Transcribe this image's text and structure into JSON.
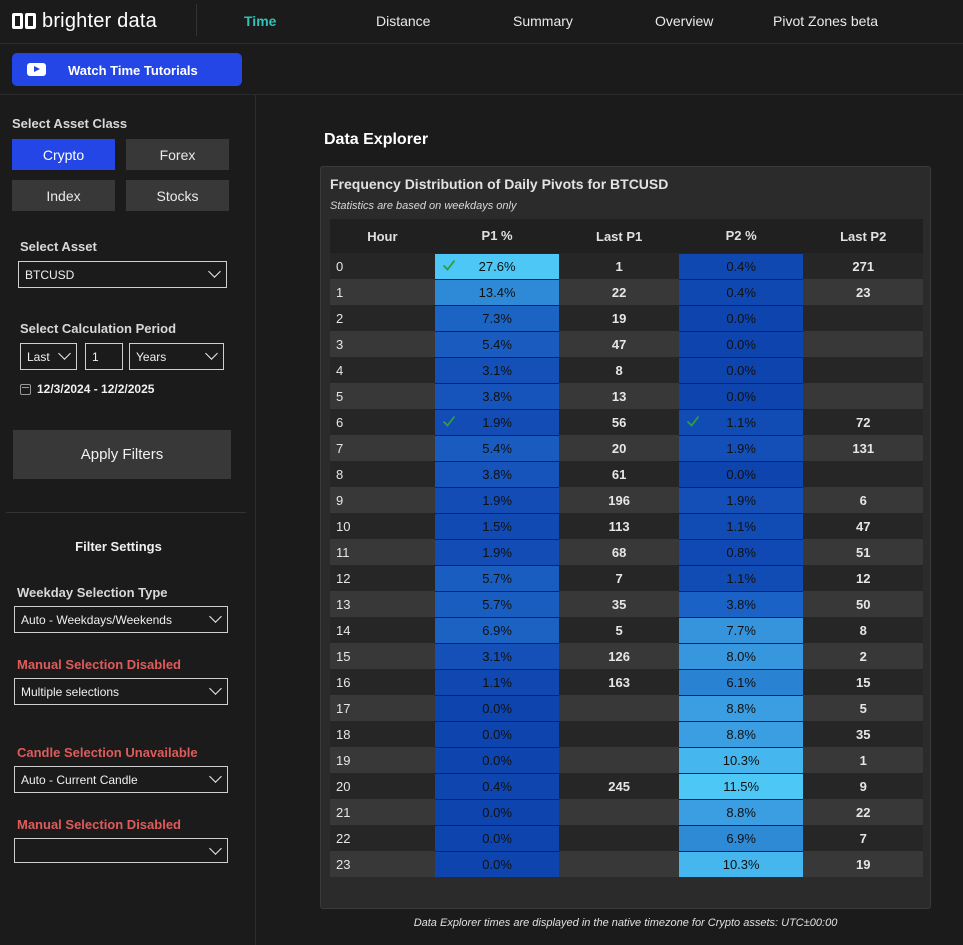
{
  "app": {
    "logo_text": "brighter data"
  },
  "nav": {
    "tabs": [
      "Time",
      "Distance",
      "Summary",
      "Overview",
      "Pivot Zones beta"
    ],
    "active": "Time"
  },
  "tutorial": {
    "label": "Watch Time Tutorials"
  },
  "sidebar": {
    "asset_class_label": "Select Asset Class",
    "asset_classes": [
      "Crypto",
      "Forex",
      "Index",
      "Stocks"
    ],
    "active_asset_class": "Crypto",
    "asset_label": "Select Asset",
    "asset_value": "BTCUSD",
    "period_label": "Select Calculation Period",
    "period_mode": "Last",
    "period_count": "1",
    "period_unit": "Years",
    "date_range": "12/3/2024 - 12/2/2025",
    "apply_label": "Apply Filters",
    "filter_title": "Filter Settings",
    "weekday_label": "Weekday Selection Type",
    "weekday_value": "Auto - Weekdays/Weekends",
    "manual1_label": "Manual Selection Disabled",
    "manual1_value": "Multiple selections",
    "candle_label": "Candle Selection Unavailable",
    "candle_value": "Auto - Current Candle",
    "manual2_label": "Manual Selection Disabled",
    "manual2_value": ""
  },
  "main": {
    "section_title": "Data Explorer",
    "panel_title": "Frequency Distribution of Daily Pivots for BTCUSD",
    "panel_subtitle": "Statistics are based on weekdays only",
    "columns": [
      "Hour",
      "P1 %",
      "Last P1",
      "P2 %",
      "Last P2"
    ],
    "rows": [
      {
        "hour": "0",
        "p1": "27.6%",
        "last_p1": "1",
        "p2": "0.4%",
        "last_p2": "271",
        "p1_color": "#4cc7f6",
        "p2_color": "#1048b2",
        "p1_check": true,
        "p2_check": false
      },
      {
        "hour": "1",
        "p1": "13.4%",
        "last_p1": "22",
        "p2": "0.4%",
        "last_p2": "23",
        "p1_color": "#2e8ad6",
        "p2_color": "#1048b2",
        "p1_check": false,
        "p2_check": false
      },
      {
        "hour": "2",
        "p1": "7.3%",
        "last_p1": "19",
        "p2": "0.0%",
        "last_p2": "",
        "p1_color": "#1c64c4",
        "p2_color": "#0e44ae",
        "p1_check": false,
        "p2_check": false
      },
      {
        "hour": "3",
        "p1": "5.4%",
        "last_p1": "47",
        "p2": "0.0%",
        "last_p2": "",
        "p1_color": "#195bbf",
        "p2_color": "#0e44ae",
        "p1_check": false,
        "p2_check": false
      },
      {
        "hour": "4",
        "p1": "3.1%",
        "last_p1": "8",
        "p2": "0.0%",
        "last_p2": "",
        "p1_color": "#1550b8",
        "p2_color": "#0e44ae",
        "p1_check": false,
        "p2_check": false
      },
      {
        "hour": "5",
        "p1": "3.8%",
        "last_p1": "13",
        "p2": "0.0%",
        "last_p2": "",
        "p1_color": "#1653ba",
        "p2_color": "#0e44ae",
        "p1_check": false,
        "p2_check": false
      },
      {
        "hour": "6",
        "p1": "1.9%",
        "last_p1": "56",
        "p2": "1.1%",
        "last_p2": "72",
        "p1_color": "#134cb5",
        "p2_color": "#114bb4",
        "p1_check": true,
        "p2_check": true
      },
      {
        "hour": "7",
        "p1": "5.4%",
        "last_p1": "20",
        "p2": "1.9%",
        "last_p2": "131",
        "p1_color": "#195bbf",
        "p2_color": "#134fb7",
        "p1_check": false,
        "p2_check": false
      },
      {
        "hour": "8",
        "p1": "3.8%",
        "last_p1": "61",
        "p2": "0.0%",
        "last_p2": "",
        "p1_color": "#1653ba",
        "p2_color": "#0e44ae",
        "p1_check": false,
        "p2_check": false
      },
      {
        "hour": "9",
        "p1": "1.9%",
        "last_p1": "196",
        "p2": "1.9%",
        "last_p2": "6",
        "p1_color": "#134cb5",
        "p2_color": "#134fb7",
        "p1_check": false,
        "p2_check": false
      },
      {
        "hour": "10",
        "p1": "1.5%",
        "last_p1": "113",
        "p2": "1.1%",
        "last_p2": "47",
        "p1_color": "#124ab3",
        "p2_color": "#114bb4",
        "p1_check": false,
        "p2_check": false
      },
      {
        "hour": "11",
        "p1": "1.9%",
        "last_p1": "68",
        "p2": "0.8%",
        "last_p2": "51",
        "p1_color": "#134cb5",
        "p2_color": "#1049b3",
        "p1_check": false,
        "p2_check": false
      },
      {
        "hour": "12",
        "p1": "5.7%",
        "last_p1": "7",
        "p2": "1.1%",
        "last_p2": "12",
        "p1_color": "#1a5dc0",
        "p2_color": "#114bb4",
        "p1_check": false,
        "p2_check": false
      },
      {
        "hour": "13",
        "p1": "5.7%",
        "last_p1": "35",
        "p2": "3.8%",
        "last_p2": "50",
        "p1_color": "#1a5dc0",
        "p2_color": "#1b62c6",
        "p1_check": false,
        "p2_check": false
      },
      {
        "hour": "14",
        "p1": "6.9%",
        "last_p1": "5",
        "p2": "7.7%",
        "last_p2": "8",
        "p1_color": "#1c62c3",
        "p2_color": "#3594dc",
        "p1_check": false,
        "p2_check": false
      },
      {
        "hour": "15",
        "p1": "3.1%",
        "last_p1": "126",
        "p2": "8.0%",
        "last_p2": "2",
        "p1_color": "#1550b8",
        "p2_color": "#3797de",
        "p1_check": false,
        "p2_check": false
      },
      {
        "hour": "16",
        "p1": "1.1%",
        "last_p1": "163",
        "p2": "6.1%",
        "last_p2": "15",
        "p1_color": "#1147b1",
        "p2_color": "#2a82d2",
        "p1_check": false,
        "p2_check": false
      },
      {
        "hour": "17",
        "p1": "0.0%",
        "last_p1": "",
        "p2": "8.8%",
        "last_p2": "5",
        "p1_color": "#0e44ae",
        "p2_color": "#3b9ee2",
        "p1_check": false,
        "p2_check": false
      },
      {
        "hour": "18",
        "p1": "0.0%",
        "last_p1": "",
        "p2": "8.8%",
        "last_p2": "35",
        "p1_color": "#0e44ae",
        "p2_color": "#3b9ee2",
        "p1_check": false,
        "p2_check": false
      },
      {
        "hour": "19",
        "p1": "0.0%",
        "last_p1": "",
        "p2": "10.3%",
        "last_p2": "1",
        "p1_color": "#0e44ae",
        "p2_color": "#46b6ee",
        "p1_check": false,
        "p2_check": false
      },
      {
        "hour": "20",
        "p1": "0.4%",
        "last_p1": "245",
        "p2": "11.5%",
        "last_p2": "9",
        "p1_color": "#0f45af",
        "p2_color": "#4cc7f6",
        "p1_check": false,
        "p2_check": false
      },
      {
        "hour": "21",
        "p1": "0.0%",
        "last_p1": "",
        "p2": "8.8%",
        "last_p2": "22",
        "p1_color": "#0e44ae",
        "p2_color": "#3b9ee2",
        "p1_check": false,
        "p2_check": false
      },
      {
        "hour": "22",
        "p1": "0.0%",
        "last_p1": "",
        "p2": "6.9%",
        "last_p2": "7",
        "p1_color": "#0e44ae",
        "p2_color": "#2f8ad6",
        "p1_check": false,
        "p2_check": false
      },
      {
        "hour": "23",
        "p1": "0.0%",
        "last_p1": "",
        "p2": "10.3%",
        "last_p2": "19",
        "p1_color": "#0e44ae",
        "p2_color": "#46b6ee",
        "p1_check": false,
        "p2_check": false
      }
    ],
    "footnote": "Data Explorer times are displayed in the native timezone for Crypto assets: UTC±00:00"
  }
}
